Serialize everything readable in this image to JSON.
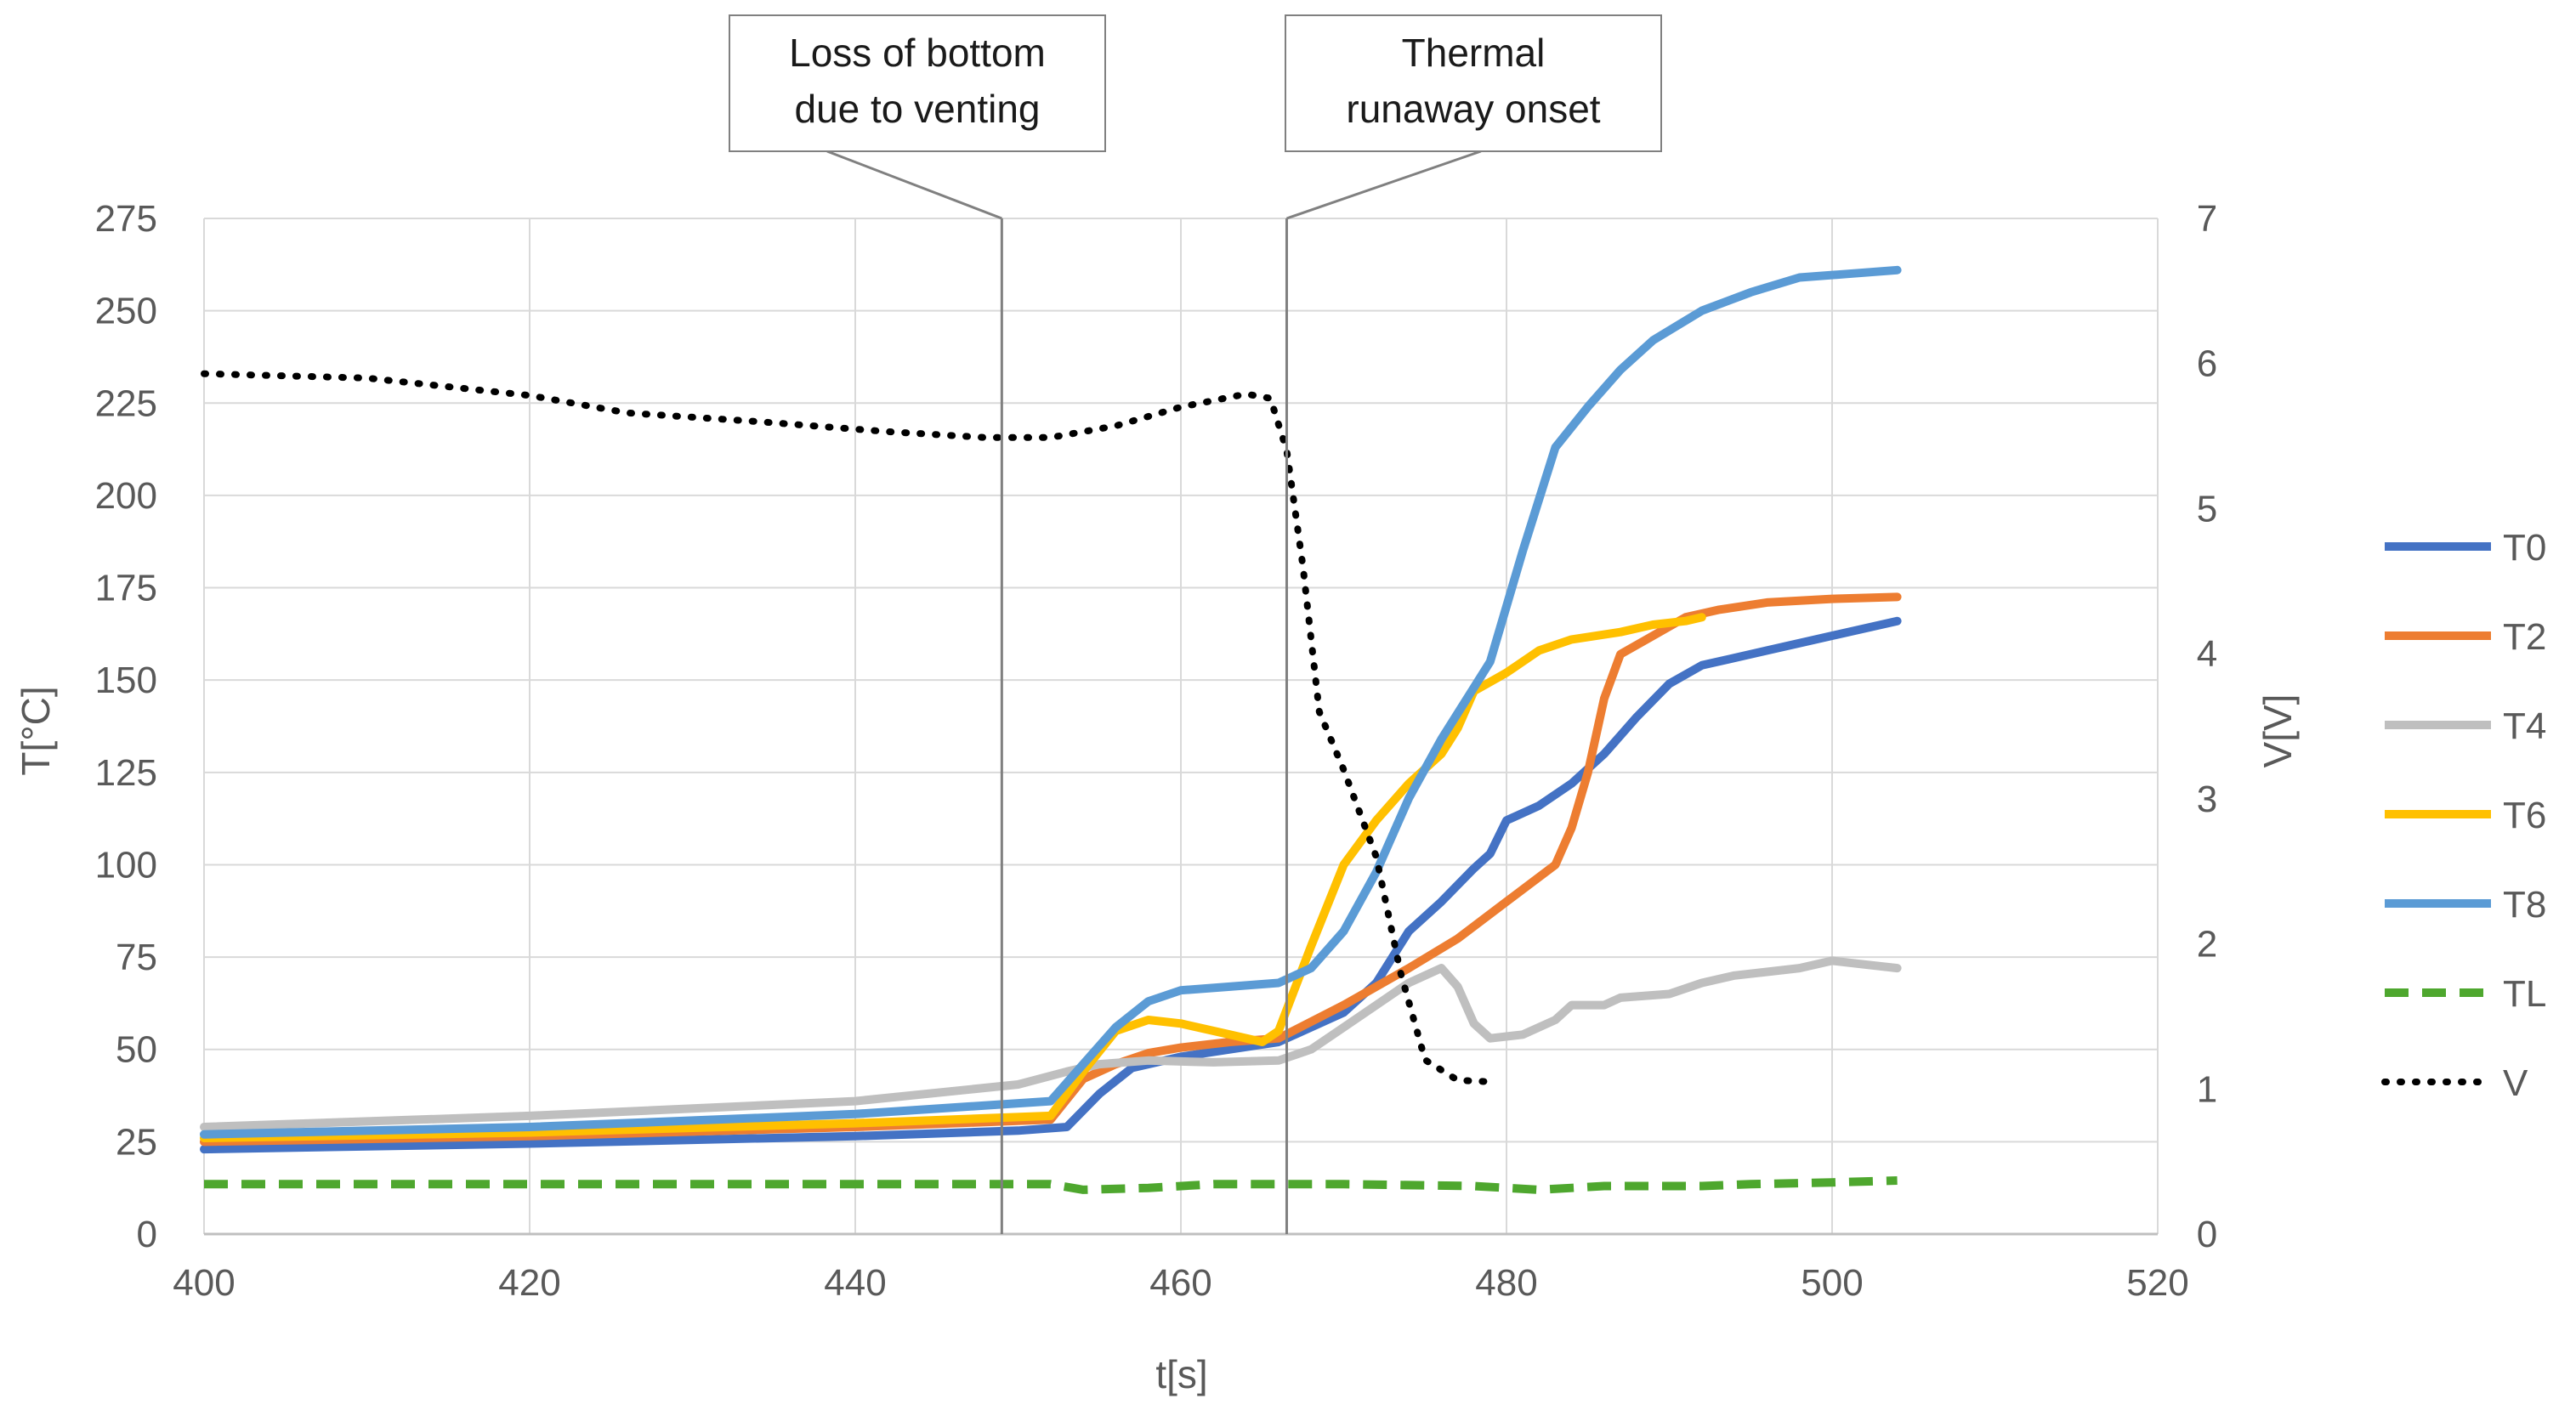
{
  "chart_data": {
    "type": "line",
    "xlabel": "t[s]",
    "ylabel": "T[°C]",
    "y2label": "V[V]",
    "xlim": [
      400,
      520
    ],
    "ylim": [
      0,
      275
    ],
    "y2lim": [
      0,
      7
    ],
    "x_ticks": [
      400,
      420,
      440,
      460,
      480,
      500,
      520
    ],
    "y_ticks": [
      0,
      25,
      50,
      75,
      100,
      125,
      150,
      175,
      200,
      225,
      250,
      275
    ],
    "y2_ticks": [
      0,
      1,
      2,
      3,
      4,
      5,
      6,
      7
    ],
    "grid": true,
    "legend_position": "right",
    "series": [
      {
        "name": "T0",
        "axis": "left",
        "color": "#4472C4",
        "style": "solid",
        "points": [
          [
            400,
            23
          ],
          [
            420,
            24.5
          ],
          [
            440,
            26.5
          ],
          [
            450,
            28
          ],
          [
            453,
            29
          ],
          [
            455,
            38
          ],
          [
            457,
            45
          ],
          [
            460,
            48
          ],
          [
            463,
            50
          ],
          [
            466,
            52
          ],
          [
            470,
            60
          ],
          [
            472,
            68
          ],
          [
            474,
            82
          ],
          [
            476,
            90
          ],
          [
            478,
            99
          ],
          [
            479,
            103
          ],
          [
            480,
            112
          ],
          [
            482,
            116
          ],
          [
            484,
            122
          ],
          [
            486,
            130
          ],
          [
            488,
            140
          ],
          [
            490,
            149
          ],
          [
            492,
            154
          ],
          [
            494,
            156
          ],
          [
            496,
            158
          ],
          [
            500,
            162
          ],
          [
            504,
            166
          ]
        ]
      },
      {
        "name": "T2",
        "axis": "left",
        "color": "#ED7D31",
        "style": "solid",
        "points": [
          [
            400,
            25
          ],
          [
            420,
            26.5
          ],
          [
            440,
            29
          ],
          [
            452,
            31
          ],
          [
            454,
            42
          ],
          [
            456,
            46
          ],
          [
            458,
            49
          ],
          [
            460,
            50.5
          ],
          [
            463,
            52
          ],
          [
            466,
            53
          ],
          [
            470,
            62
          ],
          [
            474,
            72
          ],
          [
            477,
            80
          ],
          [
            480,
            90
          ],
          [
            483,
            100
          ],
          [
            484,
            110
          ],
          [
            485,
            125
          ],
          [
            486,
            145
          ],
          [
            487,
            157
          ],
          [
            489,
            162
          ],
          [
            491,
            167
          ],
          [
            493,
            169
          ],
          [
            496,
            171
          ],
          [
            500,
            172
          ],
          [
            504,
            172.5
          ]
        ]
      },
      {
        "name": "T4",
        "axis": "left",
        "color": "#BFBFBF",
        "style": "solid",
        "points": [
          [
            400,
            29
          ],
          [
            420,
            32
          ],
          [
            440,
            36
          ],
          [
            450,
            40.5
          ],
          [
            453,
            44
          ],
          [
            455,
            46
          ],
          [
            458,
            47
          ],
          [
            462,
            46.5
          ],
          [
            466,
            47
          ],
          [
            468,
            50
          ],
          [
            470,
            56
          ],
          [
            472,
            62
          ],
          [
            474,
            68
          ],
          [
            476,
            72
          ],
          [
            477,
            67
          ],
          [
            478,
            57
          ],
          [
            479,
            53
          ],
          [
            481,
            54
          ],
          [
            483,
            58
          ],
          [
            484,
            62
          ],
          [
            486,
            62
          ],
          [
            487,
            64
          ],
          [
            490,
            65
          ],
          [
            492,
            68
          ],
          [
            494,
            70
          ],
          [
            496,
            71
          ],
          [
            498,
            72
          ],
          [
            500,
            74
          ],
          [
            502,
            73
          ],
          [
            504,
            72
          ]
        ]
      },
      {
        "name": "T6",
        "axis": "left",
        "color": "#FFC000",
        "style": "solid",
        "points": [
          [
            400,
            26
          ],
          [
            420,
            27.5
          ],
          [
            440,
            30
          ],
          [
            452,
            32
          ],
          [
            454,
            44
          ],
          [
            456,
            55
          ],
          [
            458,
            58
          ],
          [
            460,
            57
          ],
          [
            463,
            54
          ],
          [
            465,
            52
          ],
          [
            466,
            55
          ],
          [
            468,
            78
          ],
          [
            470,
            100
          ],
          [
            472,
            112
          ],
          [
            474,
            122
          ],
          [
            476,
            130
          ],
          [
            477,
            137
          ],
          [
            478,
            147
          ],
          [
            480,
            152
          ],
          [
            482,
            158
          ],
          [
            484,
            161
          ],
          [
            487,
            163
          ],
          [
            489,
            165
          ],
          [
            491,
            166
          ],
          [
            492,
            167
          ]
        ]
      },
      {
        "name": "T8",
        "axis": "left",
        "color": "#5B9BD5",
        "style": "solid",
        "points": [
          [
            400,
            27
          ],
          [
            420,
            29
          ],
          [
            440,
            32.5
          ],
          [
            452,
            36
          ],
          [
            454,
            46
          ],
          [
            456,
            56
          ],
          [
            458,
            63
          ],
          [
            460,
            66
          ],
          [
            463,
            67
          ],
          [
            466,
            68
          ],
          [
            468,
            72
          ],
          [
            470,
            82
          ],
          [
            472,
            98
          ],
          [
            474,
            118
          ],
          [
            476,
            134
          ],
          [
            478,
            148
          ],
          [
            479,
            155
          ],
          [
            481,
            185
          ],
          [
            483,
            213
          ],
          [
            485,
            224
          ],
          [
            487,
            234
          ],
          [
            489,
            242
          ],
          [
            492,
            250
          ],
          [
            495,
            255
          ],
          [
            498,
            259
          ],
          [
            501,
            260
          ],
          [
            504,
            261
          ]
        ]
      },
      {
        "name": "TL",
        "axis": "left",
        "color": "#4EA72E",
        "style": "dashed",
        "points": [
          [
            400,
            13.5
          ],
          [
            420,
            13.5
          ],
          [
            440,
            13.5
          ],
          [
            452,
            13.5
          ],
          [
            454,
            12
          ],
          [
            458,
            12.5
          ],
          [
            462,
            13.5
          ],
          [
            470,
            13.5
          ],
          [
            478,
            13
          ],
          [
            482,
            12
          ],
          [
            486,
            13
          ],
          [
            492,
            13
          ],
          [
            495,
            13.5
          ],
          [
            500,
            14
          ],
          [
            504,
            14.5
          ]
        ]
      },
      {
        "name": "V",
        "axis": "right",
        "color": "#000000",
        "style": "dotted",
        "points": [
          [
            400,
            5.93
          ],
          [
            410,
            5.9
          ],
          [
            420,
            5.78
          ],
          [
            426,
            5.66
          ],
          [
            434,
            5.6
          ],
          [
            442,
            5.53
          ],
          [
            448,
            5.49
          ],
          [
            452,
            5.49
          ],
          [
            456,
            5.57
          ],
          [
            460,
            5.7
          ],
          [
            464,
            5.79
          ],
          [
            465.5,
            5.76
          ],
          [
            466.5,
            5.4
          ],
          [
            467.5,
            4.6
          ],
          [
            468.5,
            3.6
          ],
          [
            470,
            3.2
          ],
          [
            472,
            2.6
          ],
          [
            473.5,
            1.8
          ],
          [
            475,
            1.2
          ],
          [
            477,
            1.06
          ],
          [
            479,
            1.05
          ]
        ]
      }
    ],
    "annotations": [
      {
        "lines": [
          "Loss of bottom",
          "due to venting"
        ],
        "x": 449
      },
      {
        "lines": [
          "Thermal",
          "runaway onset"
        ],
        "x": 466.5
      }
    ]
  }
}
